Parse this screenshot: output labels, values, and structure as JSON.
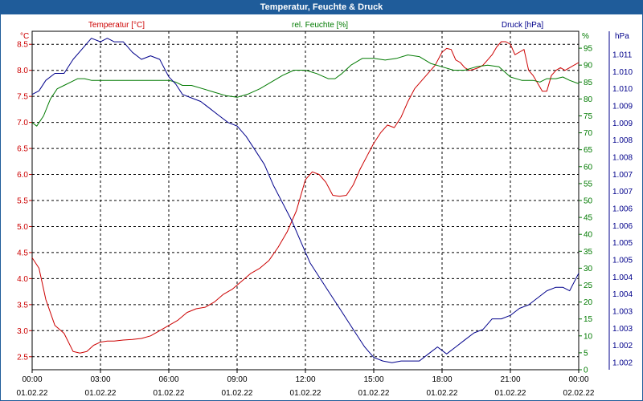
{
  "window": {
    "title": "Temperatur, Feuchte & Druck"
  },
  "chart_data": {
    "type": "line",
    "title": "Temperatur, Feuchte & Druck",
    "x_ticks": [
      {
        "time": "00:00",
        "date": "01.02.22"
      },
      {
        "time": "03:00",
        "date": "01.02.22"
      },
      {
        "time": "06:00",
        "date": "01.02.22"
      },
      {
        "time": "09:00",
        "date": "01.02.22"
      },
      {
        "time": "12:00",
        "date": "01.02.22"
      },
      {
        "time": "15:00",
        "date": "01.02.22"
      },
      {
        "time": "18:00",
        "date": "01.02.22"
      },
      {
        "time": "21:00",
        "date": "01.02.22"
      },
      {
        "time": "00:00",
        "date": "02.02.22"
      }
    ],
    "xlim_hours": [
      0,
      24
    ],
    "grid": true,
    "axes": {
      "temperature": {
        "label": "Temperatur [°C]",
        "unit": "°C",
        "color": "#cc0000",
        "ylim": [
          2.25,
          8.75
        ],
        "ticks": [
          "2.5",
          "3.0",
          "3.5",
          "4.0",
          "4.5",
          "5.0",
          "5.5",
          "6.0",
          "6.5",
          "7.0",
          "7.5",
          "8.0",
          "8.5"
        ]
      },
      "humidity": {
        "label": "rel. Feuchte [%]",
        "unit": "%",
        "color": "#007a00",
        "ylim": [
          0,
          100
        ],
        "ticks": [
          "0",
          "5",
          "10",
          "15",
          "20",
          "25",
          "30",
          "35",
          "40",
          "45",
          "50",
          "55",
          "60",
          "65",
          "70",
          "75",
          "80",
          "85",
          "90",
          "95"
        ]
      },
      "pressure": {
        "label": "Druck [hPa]",
        "unit": "hPa",
        "color": "#00008b",
        "ylim": [
          1001.75,
          1011.4
        ],
        "ticks": [
          "1.002",
          "1.002",
          "1.003",
          "1.003",
          "1.004",
          "1.004",
          "1.005",
          "1.005",
          "1.006",
          "1.006",
          "1.007",
          "1.007",
          "1.008",
          "1.008",
          "1.009",
          "1.009",
          "1.010",
          "1.010",
          "1.011"
        ]
      }
    },
    "series": [
      {
        "name": "Temperatur [°C]",
        "axis": "temperature",
        "color": "#cc0000",
        "x": [
          0,
          0.3,
          0.6,
          1,
          1.4,
          1.8,
          2.1,
          2.4,
          2.7,
          3,
          3.3,
          3.6,
          4,
          4.4,
          4.8,
          5.2,
          5.6,
          6,
          6.4,
          6.8,
          7.2,
          7.6,
          8,
          8.4,
          8.8,
          9.2,
          9.6,
          10,
          10.4,
          10.8,
          11.2,
          11.6,
          12,
          12.3,
          12.6,
          12.9,
          13.2,
          13.5,
          13.8,
          14.1,
          14.4,
          14.7,
          15,
          15.3,
          15.6,
          15.9,
          16.2,
          16.5,
          16.8,
          17.1,
          17.4,
          17.7,
          18,
          18.2,
          18.4,
          18.6,
          18.8,
          19,
          19.2,
          19.4,
          19.6,
          19.8,
          20,
          20.2,
          20.4,
          20.6,
          20.8,
          21,
          21.2,
          21.4,
          21.6,
          21.8,
          22,
          22.2,
          22.4,
          22.6,
          22.8,
          23,
          23.2,
          23.4,
          23.6,
          23.8,
          24
        ],
        "values": [
          4.4,
          4.2,
          3.6,
          3.1,
          2.95,
          2.6,
          2.57,
          2.6,
          2.72,
          2.78,
          2.8,
          2.8,
          2.82,
          2.83,
          2.85,
          2.9,
          3.0,
          3.1,
          3.2,
          3.35,
          3.42,
          3.45,
          3.55,
          3.7,
          3.8,
          3.95,
          4.1,
          4.2,
          4.35,
          4.6,
          4.9,
          5.3,
          5.9,
          6.05,
          6.0,
          5.85,
          5.6,
          5.58,
          5.6,
          5.8,
          6.1,
          6.35,
          6.6,
          6.8,
          6.95,
          6.9,
          7.1,
          7.4,
          7.65,
          7.8,
          7.95,
          8.1,
          8.35,
          8.42,
          8.4,
          8.2,
          8.15,
          8.05,
          8.0,
          8.02,
          8.05,
          8.1,
          8.2,
          8.3,
          8.45,
          8.55,
          8.55,
          8.5,
          8.3,
          8.35,
          8.4,
          8.0,
          7.9,
          7.75,
          7.6,
          7.6,
          7.9,
          8.0,
          8.05,
          8.0,
          8.05,
          8.1,
          8.15
        ]
      },
      {
        "name": "rel. Feuchte [%]",
        "axis": "humidity",
        "color": "#007a00",
        "x": [
          0,
          0.2,
          0.5,
          0.8,
          1.1,
          1.4,
          1.7,
          2,
          2.3,
          2.6,
          3,
          3.5,
          4,
          4.5,
          5,
          5.5,
          6,
          6.3,
          6.6,
          7,
          7.5,
          8,
          8.5,
          9,
          9.5,
          10,
          10.5,
          11,
          11.5,
          12,
          12.5,
          13,
          13.3,
          13.6,
          14,
          14.5,
          15,
          15.5,
          16,
          16.5,
          17,
          17.5,
          18,
          18.5,
          19,
          19.5,
          20,
          20.5,
          21,
          21.5,
          22,
          22.3,
          22.6,
          23,
          23.3,
          23.6,
          24
        ],
        "values": [
          73,
          72,
          75,
          80,
          83,
          84,
          85,
          86,
          86,
          85.5,
          85.5,
          85.5,
          85.5,
          85.5,
          85.5,
          85.5,
          85.5,
          85,
          84,
          84,
          83,
          82,
          81,
          80.5,
          81.5,
          83,
          85,
          87,
          88.5,
          88.5,
          87.5,
          86,
          86,
          87.5,
          90,
          92,
          92,
          91.5,
          92,
          93,
          92.5,
          90.5,
          89.5,
          88.5,
          88.5,
          89.5,
          90,
          89.5,
          86.5,
          85.5,
          85.5,
          85,
          86,
          86,
          86.5,
          85.5,
          84.5
        ]
      },
      {
        "name": "Druck [hPa]",
        "axis": "pressure",
        "color": "#00008b",
        "x": [
          0,
          0.3,
          0.6,
          1,
          1.4,
          1.8,
          2.2,
          2.6,
          3,
          3.3,
          3.6,
          4,
          4.4,
          4.8,
          5.2,
          5.6,
          6,
          6.3,
          6.6,
          7,
          7.4,
          7.8,
          8.2,
          8.6,
          9,
          9.4,
          9.8,
          10.2,
          10.6,
          11,
          11.4,
          11.8,
          12.2,
          12.6,
          13,
          13.4,
          13.8,
          14.2,
          14.6,
          15,
          15.4,
          15.8,
          16.2,
          16.6,
          17,
          17.4,
          17.8,
          18.2,
          18.6,
          19,
          19.4,
          19.8,
          20.2,
          20.6,
          21,
          21.4,
          21.8,
          22.2,
          22.6,
          23,
          23.3,
          23.6,
          24
        ],
        "values": [
          1009.6,
          1009.7,
          1010.0,
          1010.2,
          1010.2,
          1010.6,
          1010.9,
          1011.2,
          1011.1,
          1011.2,
          1011.1,
          1011.1,
          1010.8,
          1010.6,
          1010.7,
          1010.6,
          1010.1,
          1009.9,
          1009.6,
          1009.5,
          1009.4,
          1009.2,
          1009.0,
          1008.8,
          1008.7,
          1008.4,
          1008.0,
          1007.6,
          1007.0,
          1006.5,
          1006.0,
          1005.4,
          1004.8,
          1004.4,
          1004.0,
          1003.6,
          1003.2,
          1002.8,
          1002.4,
          1002.1,
          1002.0,
          1001.95,
          1002.0,
          1002.0,
          1002.0,
          1002.2,
          1002.4,
          1002.2,
          1002.4,
          1002.6,
          1002.8,
          1002.9,
          1003.2,
          1003.2,
          1003.3,
          1003.5,
          1003.6,
          1003.8,
          1004.0,
          1004.1,
          1004.1,
          1004.0,
          1004.5
        ]
      }
    ]
  }
}
